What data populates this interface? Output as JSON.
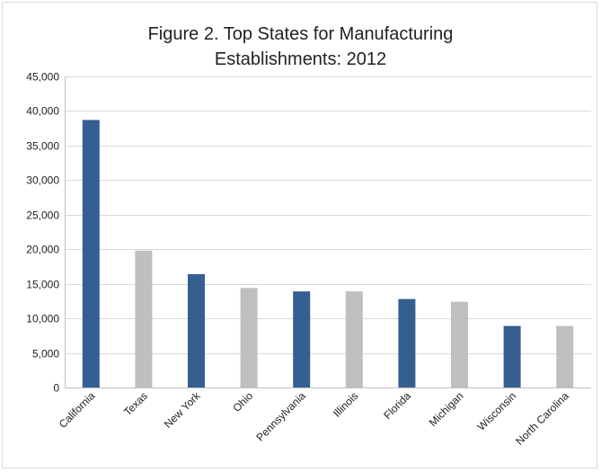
{
  "chart_data": {
    "type": "bar",
    "title": "Figure 2. Top States for Manufacturing Establishments: 2012",
    "title_lines": [
      "Figure 2. Top States for Manufacturing",
      "Establishments: 2012"
    ],
    "xlabel": "",
    "ylabel": "",
    "categories": [
      "California",
      "Texas",
      "New York",
      "Ohio",
      "Pennsylvania",
      "Illinois",
      "Florida",
      "Michigan",
      "Wisconsin",
      "North Carolina"
    ],
    "values": [
      38700,
      19800,
      16400,
      14400,
      13900,
      13900,
      12800,
      12400,
      8900,
      8900
    ],
    "bar_colors": [
      "#355f91",
      "#bfbfbf",
      "#355f91",
      "#bfbfbf",
      "#355f91",
      "#bfbfbf",
      "#355f91",
      "#bfbfbf",
      "#355f91",
      "#bfbfbf"
    ],
    "ylim": [
      0,
      45000
    ],
    "yticks": [
      0,
      5000,
      10000,
      15000,
      20000,
      25000,
      30000,
      35000,
      40000,
      45000
    ],
    "ytick_labels": [
      "0",
      "5,000",
      "10,000",
      "15,000",
      "20,000",
      "25,000",
      "30,000",
      "35,000",
      "40,000",
      "45,000"
    ],
    "grid": true,
    "legend": "none",
    "colors": {
      "dark_bar": "#355f91",
      "light_bar": "#bfbfbf",
      "gridline": "#d9d9d9",
      "axis": "#bfbfbf",
      "text": "#222222"
    }
  }
}
